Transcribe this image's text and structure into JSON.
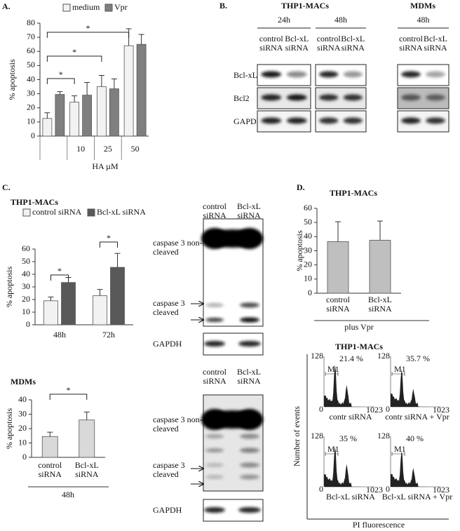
{
  "chart_data": [
    {
      "type": "bar",
      "ylabel": "% apoptosis",
      "xlabel": "HA µM",
      "categories": [
        null,
        "10",
        "25",
        "50"
      ],
      "series": [
        {
          "name": "medium",
          "color": "#f2f2f2",
          "values": [
            12.5,
            24,
            35,
            64
          ],
          "errors": [
            4,
            4.5,
            8,
            12
          ]
        },
        {
          "name": "Vpr",
          "color": "#7f7f7f",
          "values": [
            29.5,
            29,
            33.5,
            65
          ],
          "errors": [
            2,
            9,
            7,
            7
          ]
        }
      ],
      "ylim": [
        0,
        80
      ],
      "yticks": [
        0,
        10,
        20,
        30,
        40,
        50,
        60,
        70,
        80
      ],
      "significance": [
        "*",
        "*",
        "*"
      ]
    },
    {
      "type": "bar",
      "title": "THP1-MACs",
      "ylabel": "% apoptosis",
      "categories": [
        "48h",
        "72h"
      ],
      "series": [
        {
          "name": "control siRNA",
          "color": "#f2f2f2",
          "values": [
            19,
            23
          ],
          "errors": [
            3,
            5
          ]
        },
        {
          "name": "Bcl-xL siRNA",
          "color": "#595959",
          "values": [
            33.5,
            45.5
          ],
          "errors": [
            4,
            11
          ]
        }
      ],
      "ylim": [
        0,
        60
      ],
      "yticks": [
        0,
        10,
        20,
        30,
        40,
        50,
        60
      ],
      "significance": [
        "*",
        "*"
      ]
    },
    {
      "type": "bar",
      "title": "MDMs",
      "ylabel": "% apoptosis",
      "xlabel": "48h",
      "categories": [
        "control siRNA",
        "Bcl-xL siRNA"
      ],
      "color": "#d9d9d9",
      "values": [
        14.5,
        26
      ],
      "errors": [
        3,
        5.5
      ],
      "ylim": [
        0,
        40
      ],
      "yticks": [
        0,
        10,
        20,
        30,
        40
      ],
      "significance": [
        "*"
      ]
    },
    {
      "type": "bar",
      "title": "THP1-MACs",
      "ylabel": "% apoptosis",
      "xlabel": "plus Vpr",
      "categories": [
        "control siRNA",
        "Bcl-xL siRNA"
      ],
      "color": "#bfbfbf",
      "values": [
        36.5,
        37.5
      ],
      "errors": [
        14,
        13.5
      ],
      "ylim": [
        0,
        60
      ],
      "yticks": [
        0,
        10,
        20,
        30,
        40,
        50,
        60
      ],
      "significance": []
    }
  ],
  "figure": {
    "panel_labels": [
      "A.",
      "B.",
      "C.",
      "D."
    ],
    "B": {
      "title_thp1": "THP1-MACs",
      "title_mdm": "MDMs",
      "timepoints": [
        "24h",
        "48h",
        "48h"
      ],
      "lanes": [
        "control siRNA",
        "Bcl-xL siRNA"
      ],
      "rows": [
        "Bcl-xL",
        "Bcl2",
        "GAPDH"
      ]
    },
    "C_blots": {
      "lanes": [
        "control siRNA",
        "Bcl-xL siRNA"
      ],
      "non_cleaved": "caspase 3 non-cleaved",
      "cleaved": "caspase 3 cleaved",
      "loading": "GAPDH"
    },
    "D_flow": {
      "title": "THP1-MACs",
      "y_label": "Number of events",
      "x_label": "PI fluorescence",
      "y_max": "128",
      "origin": "0",
      "x_max": "1023",
      "marker": "M1",
      "histograms": [
        {
          "percent": "21.4 %",
          "label": "contr siRNA"
        },
        {
          "percent": "35.7 %",
          "label": "contr siRNA + Vpr"
        },
        {
          "percent": "35 %",
          "label": "Bcl-xL siRNA"
        },
        {
          "percent": "40 %",
          "label": "Bcl-xL siRNA + Vpr"
        }
      ]
    }
  }
}
